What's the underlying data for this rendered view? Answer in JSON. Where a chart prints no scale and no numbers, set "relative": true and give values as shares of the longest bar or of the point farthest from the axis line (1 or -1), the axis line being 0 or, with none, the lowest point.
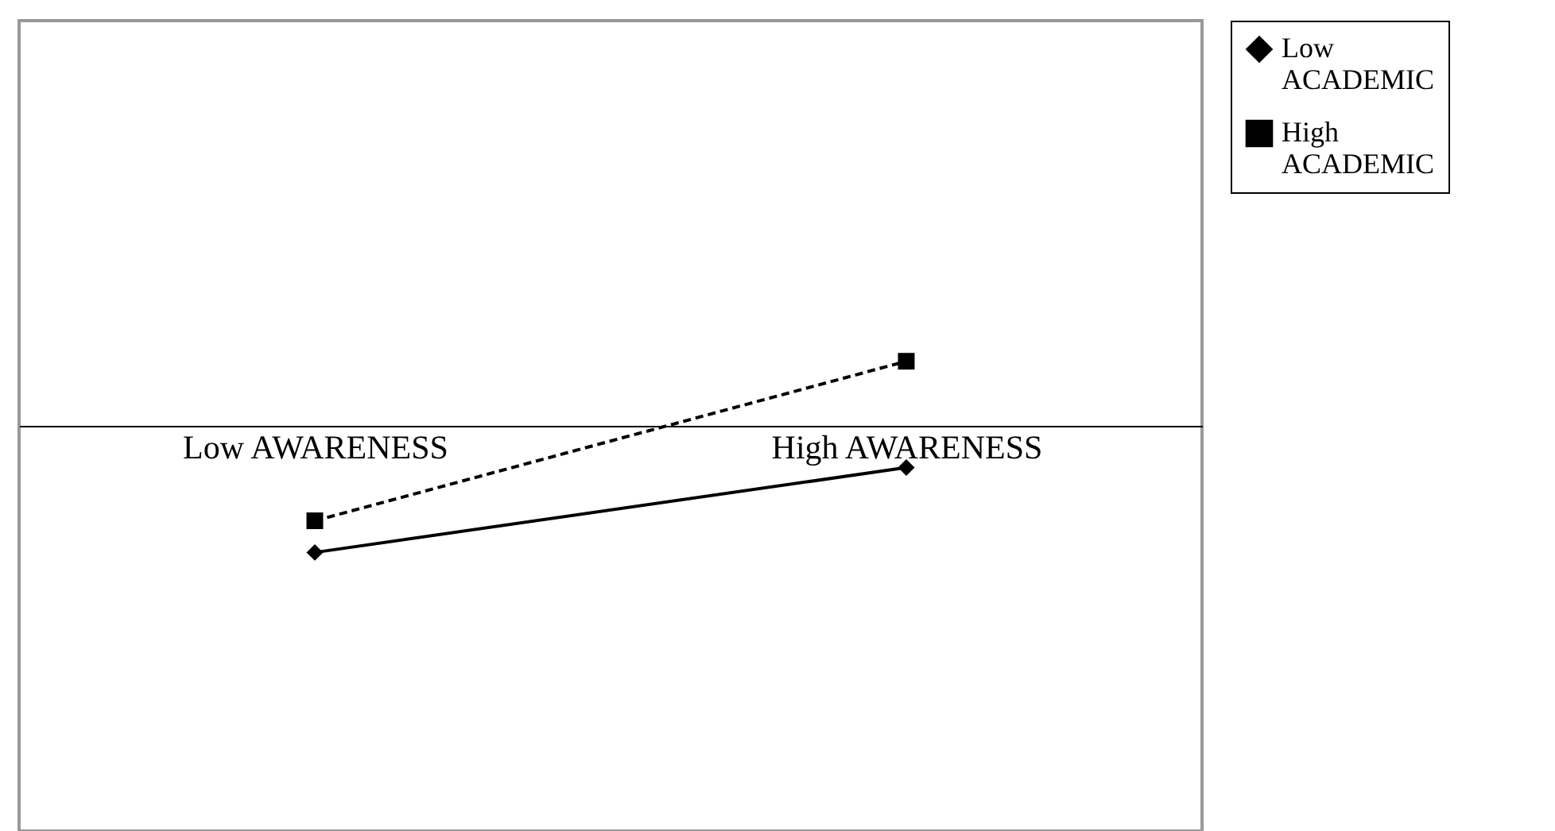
{
  "chart_data": {
    "type": "line",
    "relative": true,
    "categories": [
      "Low AWARENESS",
      "High AWARENESS"
    ],
    "legend": "right",
    "series": [
      {
        "name": "Low ACADEMIC",
        "color": "#000000",
        "values": [
          -1,
          -0.33
        ],
        "marker": "diamond",
        "line_style": "solid"
      },
      {
        "name": "High ACADEMIC",
        "color": "#000000",
        "values": [
          -0.75,
          0.51
        ],
        "marker": "square",
        "line_style": "dashed"
      }
    ]
  }
}
